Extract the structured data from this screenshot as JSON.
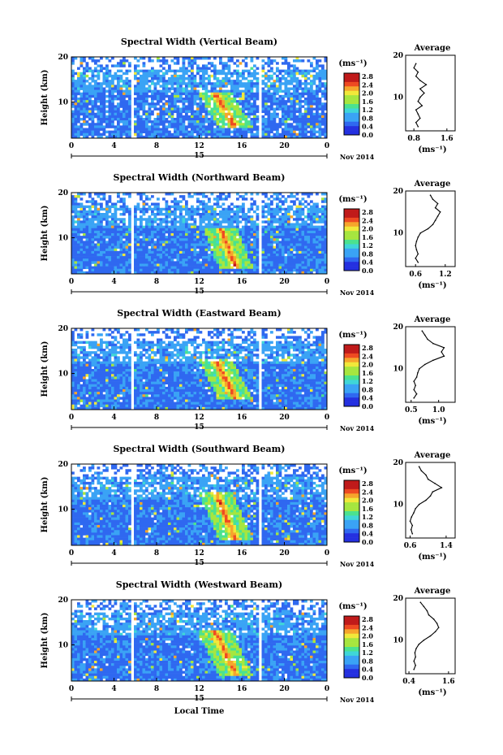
{
  "figure": {
    "x_axis_label": "Local Time",
    "date_label": "Nov 2014",
    "date_marker": "15",
    "colorbar_unit": "(ms⁻¹)",
    "average_title": "Average",
    "average_unit": "(ms⁻¹)",
    "y_axis_label": "Height (km)"
  },
  "chart_data": [
    {
      "type": "heatmap",
      "title": "Spectral Width (Vertical Beam)",
      "ylabel": "Height (km)",
      "xlabel": "Local Time",
      "x_ticks": [
        "0",
        "4",
        "8",
        "12",
        "16",
        "20",
        "0"
      ],
      "y_ticks": [
        "20",
        "10"
      ],
      "xlim": [
        0,
        24
      ],
      "ylim": [
        2,
        20
      ],
      "colorbar_ticks": [
        "2.8",
        "2.4",
        "2.0",
        "1.6",
        "1.2",
        "0.8",
        "0.4",
        "0.0"
      ],
      "data_gaps_hours": [
        5.8,
        17.8
      ],
      "enhanced_feature": {
        "time_start_h": 13.5,
        "time_end_h": 15.5,
        "height_top_km": 12,
        "height_bottom_km": 4
      },
      "profile": {
        "title": "Average",
        "x_ticks": [
          "0.8",
          "1.6"
        ],
        "xlim": [
          0.6,
          1.8
        ],
        "heights": [
          3,
          4,
          5,
          6,
          7,
          8,
          9,
          10,
          11,
          12,
          13,
          14,
          15,
          16,
          17,
          18
        ],
        "values": [
          0.9,
          0.85,
          0.95,
          0.9,
          0.85,
          1.0,
          0.9,
          0.95,
          1.05,
          0.95,
          1.1,
          0.95,
          0.85,
          0.9,
          0.8,
          0.85
        ]
      }
    },
    {
      "type": "heatmap",
      "title": "Spectral Width (Northward Beam)",
      "ylabel": "Height (km)",
      "xlabel": "Local Time",
      "x_ticks": [
        "0",
        "4",
        "8",
        "12",
        "16",
        "20",
        "0"
      ],
      "y_ticks": [
        "20",
        "10"
      ],
      "xlim": [
        0,
        24
      ],
      "ylim": [
        2,
        20
      ],
      "colorbar_ticks": [
        "2.8",
        "2.4",
        "2.0",
        "1.6",
        "1.2",
        "0.8",
        "0.4",
        "0.0"
      ],
      "data_gaps_hours": [
        5.8,
        17.8
      ],
      "enhanced_feature": {
        "time_start_h": 14.0,
        "time_end_h": 15.5,
        "height_top_km": 12,
        "height_bottom_km": 3
      },
      "profile": {
        "title": "Average",
        "x_ticks": [
          "0.6",
          "1.2"
        ],
        "xlim": [
          0.4,
          1.4
        ],
        "heights": [
          3,
          4,
          5,
          6,
          7,
          8,
          9,
          10,
          11,
          12,
          13,
          14,
          15,
          16,
          17,
          18,
          19
        ],
        "values": [
          0.65,
          0.6,
          0.65,
          0.62,
          0.6,
          0.62,
          0.65,
          0.7,
          0.85,
          0.95,
          1.0,
          1.05,
          1.1,
          1.0,
          1.05,
          0.95,
          0.9
        ]
      }
    },
    {
      "type": "heatmap",
      "title": "Spectral Width (Eastward Beam)",
      "ylabel": "Height (km)",
      "xlabel": "Local Time",
      "x_ticks": [
        "0",
        "4",
        "8",
        "12",
        "16",
        "20",
        "0"
      ],
      "y_ticks": [
        "20",
        "10"
      ],
      "xlim": [
        0,
        24
      ],
      "ylim": [
        2,
        20
      ],
      "colorbar_ticks": [
        "2.8",
        "2.4",
        "2.0",
        "1.6",
        "1.2",
        "0.8",
        "0.4",
        "0.0"
      ],
      "data_gaps_hours": [
        5.8,
        17.8
      ],
      "enhanced_feature": {
        "time_start_h": 13.5,
        "time_end_h": 15.5,
        "height_top_km": 13,
        "height_bottom_km": 4
      },
      "profile": {
        "title": "Average",
        "x_ticks": [
          "0.5",
          "1.0"
        ],
        "xlim": [
          0.4,
          1.3
        ],
        "heights": [
          3,
          4,
          5,
          6,
          7,
          8,
          9,
          10,
          11,
          12,
          13,
          14,
          15,
          16,
          17,
          18,
          19
        ],
        "values": [
          0.55,
          0.6,
          0.55,
          0.58,
          0.55,
          0.6,
          0.62,
          0.65,
          0.75,
          0.9,
          1.1,
          1.05,
          1.1,
          0.9,
          0.8,
          0.75,
          0.7
        ]
      }
    },
    {
      "type": "heatmap",
      "title": "Spectral Width (Southward Beam)",
      "ylabel": "Height (km)",
      "xlabel": "Local Time",
      "x_ticks": [
        "0",
        "4",
        "8",
        "12",
        "16",
        "20",
        "0"
      ],
      "y_ticks": [
        "20",
        "10"
      ],
      "xlim": [
        0,
        24
      ],
      "ylim": [
        2,
        20
      ],
      "colorbar_ticks": [
        "2.8",
        "2.4",
        "2.0",
        "1.6",
        "1.2",
        "0.8",
        "0.4",
        "0.0"
      ],
      "data_gaps_hours": [
        5.8,
        17.8
      ],
      "enhanced_feature": {
        "time_start_h": 13.5,
        "time_end_h": 15.5,
        "height_top_km": 14,
        "height_bottom_km": 3
      },
      "profile": {
        "title": "Average",
        "x_ticks": [
          "0.6",
          "1.4"
        ],
        "xlim": [
          0.5,
          1.6
        ],
        "heights": [
          3,
          4,
          5,
          6,
          7,
          8,
          9,
          10,
          11,
          12,
          13,
          14,
          15,
          16,
          17,
          18,
          19
        ],
        "values": [
          0.65,
          0.62,
          0.65,
          0.6,
          0.63,
          0.68,
          0.72,
          0.8,
          0.95,
          1.05,
          1.1,
          1.3,
          1.15,
          1.0,
          0.95,
          0.85,
          0.8
        ]
      }
    },
    {
      "type": "heatmap",
      "title": "Spectral Width (Westward Beam)",
      "ylabel": "Height (km)",
      "xlabel": "Local Time",
      "x_ticks": [
        "0",
        "4",
        "8",
        "12",
        "16",
        "20",
        "0"
      ],
      "y_ticks": [
        "20",
        "10"
      ],
      "xlim": [
        0,
        24
      ],
      "ylim": [
        2,
        20
      ],
      "colorbar_ticks": [
        "2.8",
        "2.4",
        "2.0",
        "1.6",
        "1.2",
        "0.8",
        "0.4",
        "0.0"
      ],
      "data_gaps_hours": [
        5.8,
        17.8
      ],
      "enhanced_feature": {
        "time_start_h": 13.5,
        "time_end_h": 15.5,
        "height_top_km": 13,
        "height_bottom_km": 3
      },
      "profile": {
        "title": "Average",
        "x_ticks": [
          "0.4",
          "1.6"
        ],
        "xlim": [
          0.3,
          1.8
        ],
        "heights": [
          3,
          4,
          5,
          6,
          7,
          8,
          9,
          10,
          11,
          12,
          13,
          14,
          15,
          16,
          17,
          18,
          19
        ],
        "values": [
          0.55,
          0.6,
          0.55,
          0.6,
          0.58,
          0.62,
          0.7,
          0.85,
          1.05,
          1.2,
          1.3,
          1.25,
          1.15,
          1.0,
          0.95,
          0.85,
          0.75
        ]
      }
    }
  ]
}
